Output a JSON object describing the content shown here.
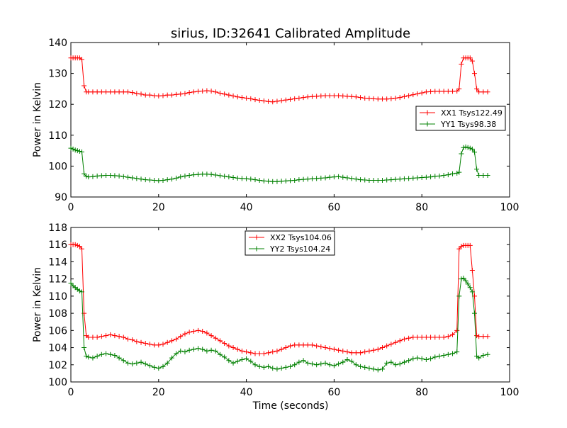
{
  "figure": {
    "title": "sirius, ID:32641 Calibrated Amplitude",
    "xlabel": "Time (seconds)"
  },
  "chart_data": [
    {
      "type": "line",
      "title": "sirius, ID:32641 Calibrated Amplitude",
      "xlabel": "",
      "ylabel": "Power in Kelvin",
      "xlim": [
        0,
        100
      ],
      "ylim": [
        90,
        140
      ],
      "xticks": [
        "0",
        "20",
        "40",
        "60",
        "80",
        "100"
      ],
      "yticks": [
        "90",
        "100",
        "110",
        "120",
        "130",
        "140"
      ],
      "legend_position": "center-right",
      "marker": "plus",
      "series": [
        {
          "name": "XX1 Tsys122.49",
          "color": "#ff0000",
          "x": [
            0,
            0.5,
            1,
            1.5,
            2,
            2.5,
            3,
            3.5,
            4,
            5,
            6,
            7,
            8,
            9,
            10,
            11,
            12,
            13,
            14,
            15,
            16,
            17,
            18,
            19,
            20,
            21,
            22,
            23,
            24,
            25,
            26,
            27,
            28,
            29,
            30,
            31,
            32,
            33,
            34,
            35,
            36,
            37,
            38,
            39,
            40,
            41,
            42,
            43,
            44,
            45,
            46,
            47,
            48,
            49,
            50,
            51,
            52,
            53,
            54,
            55,
            56,
            57,
            58,
            59,
            60,
            61,
            62,
            63,
            64,
            65,
            66,
            67,
            68,
            69,
            70,
            71,
            72,
            73,
            74,
            75,
            76,
            77,
            78,
            79,
            80,
            81,
            82,
            83,
            84,
            85,
            86,
            87,
            88,
            88.5,
            89,
            89.5,
            90,
            90.5,
            91,
            91.5,
            92,
            92.5,
            93,
            94,
            95
          ],
          "y": [
            135,
            135,
            135,
            135,
            135,
            134.5,
            126,
            124,
            124,
            124,
            124,
            124,
            124,
            124,
            124,
            124,
            124,
            124,
            123.8,
            123.5,
            123.3,
            123,
            123,
            122.8,
            122.7,
            122.8,
            123,
            123,
            123.2,
            123.3,
            123.5,
            123.8,
            124,
            124.2,
            124.3,
            124.4,
            124.3,
            124,
            123.6,
            123.3,
            123,
            122.7,
            122.4,
            122.2,
            122,
            121.8,
            121.5,
            121.3,
            121.1,
            120.9,
            120.8,
            121,
            121.2,
            121.4,
            121.6,
            121.8,
            122,
            122.2,
            122.4,
            122.5,
            122.6,
            122.7,
            122.8,
            122.8,
            122.8,
            122.8,
            122.7,
            122.6,
            122.5,
            122.4,
            122.2,
            122,
            121.9,
            121.8,
            121.7,
            121.7,
            121.7,
            121.8,
            122,
            122.2,
            122.5,
            122.8,
            123.1,
            123.4,
            123.7,
            124,
            124.1,
            124.2,
            124.2,
            124.2,
            124.2,
            124.2,
            124.3,
            125,
            133,
            135,
            135,
            135,
            135,
            134,
            130,
            125,
            124,
            124,
            124
          ]
        },
        {
          "name": "YY1 Tsys98.38",
          "color": "#008000",
          "x": [
            0,
            0.5,
            1,
            1.5,
            2,
            2.5,
            3,
            3.5,
            4,
            5,
            6,
            7,
            8,
            9,
            10,
            11,
            12,
            13,
            14,
            15,
            16,
            17,
            18,
            19,
            20,
            21,
            22,
            23,
            24,
            25,
            26,
            27,
            28,
            29,
            30,
            31,
            32,
            33,
            34,
            35,
            36,
            37,
            38,
            39,
            40,
            41,
            42,
            43,
            44,
            45,
            46,
            47,
            48,
            49,
            50,
            51,
            52,
            53,
            54,
            55,
            56,
            57,
            58,
            59,
            60,
            61,
            62,
            63,
            64,
            65,
            66,
            67,
            68,
            69,
            70,
            71,
            72,
            73,
            74,
            75,
            76,
            77,
            78,
            79,
            80,
            81,
            82,
            83,
            84,
            85,
            86,
            87,
            88,
            88.5,
            89,
            89.5,
            90,
            90.5,
            91,
            91.5,
            92,
            92.5,
            93,
            94,
            95
          ],
          "y": [
            105.8,
            105.5,
            105.2,
            105,
            104.8,
            104.6,
            97.5,
            96.7,
            96.5,
            96.6,
            96.8,
            96.9,
            97,
            97,
            96.9,
            96.8,
            96.6,
            96.4,
            96.2,
            96,
            95.8,
            95.6,
            95.5,
            95.4,
            95.3,
            95.4,
            95.6,
            95.8,
            96.1,
            96.5,
            96.8,
            97,
            97.2,
            97.3,
            97.4,
            97.4,
            97.3,
            97.1,
            96.9,
            96.7,
            96.5,
            96.3,
            96.1,
            96,
            95.9,
            95.8,
            95.6,
            95.4,
            95.2,
            95.1,
            95,
            95,
            95.1,
            95.2,
            95.3,
            95.4,
            95.6,
            95.7,
            95.8,
            95.9,
            96,
            96.1,
            96.2,
            96.4,
            96.5,
            96.6,
            96.4,
            96.2,
            96,
            95.8,
            95.6,
            95.5,
            95.4,
            95.4,
            95.4,
            95.4,
            95.5,
            95.6,
            95.7,
            95.8,
            95.9,
            96,
            96.1,
            96.2,
            96.3,
            96.4,
            96.5,
            96.7,
            96.8,
            97,
            97.2,
            97.5,
            97.7,
            98,
            104,
            106,
            106.2,
            106,
            105.8,
            105.5,
            104.5,
            99,
            97,
            97,
            97
          ]
        }
      ]
    },
    {
      "type": "line",
      "title": "",
      "xlabel": "Time (seconds)",
      "ylabel": "Power in Kelvin",
      "xlim": [
        0,
        100
      ],
      "ylim": [
        100,
        118
      ],
      "xticks": [
        "0",
        "20",
        "40",
        "60",
        "80",
        "100"
      ],
      "yticks": [
        "100",
        "102",
        "104",
        "106",
        "108",
        "110",
        "112",
        "114",
        "116",
        "118"
      ],
      "legend_position": "top-center",
      "marker": "plus",
      "series": [
        {
          "name": "XX2 Tsys104.06",
          "color": "#ff0000",
          "x": [
            0,
            0.5,
            1,
            1.5,
            2,
            2.5,
            3,
            3.5,
            4,
            5,
            6,
            7,
            8,
            9,
            10,
            11,
            12,
            13,
            14,
            15,
            16,
            17,
            18,
            19,
            20,
            21,
            22,
            23,
            24,
            25,
            26,
            27,
            28,
            29,
            30,
            31,
            32,
            33,
            34,
            35,
            36,
            37,
            38,
            39,
            40,
            41,
            42,
            43,
            44,
            45,
            46,
            47,
            48,
            49,
            50,
            51,
            52,
            53,
            54,
            55,
            56,
            57,
            58,
            59,
            60,
            61,
            62,
            63,
            64,
            65,
            66,
            67,
            68,
            69,
            70,
            71,
            72,
            73,
            74,
            75,
            76,
            77,
            78,
            79,
            80,
            81,
            82,
            83,
            84,
            85,
            86,
            87,
            88,
            88.5,
            89,
            89.5,
            90,
            90.5,
            91,
            91.5,
            92,
            92.5,
            93,
            94,
            95
          ],
          "y": [
            116,
            116,
            116,
            115.9,
            115.8,
            115.5,
            108,
            105.4,
            105.2,
            105.2,
            105.2,
            105.3,
            105.4,
            105.5,
            105.4,
            105.3,
            105.2,
            105,
            104.9,
            104.7,
            104.6,
            104.5,
            104.4,
            104.3,
            104.3,
            104.4,
            104.6,
            104.8,
            105,
            105.3,
            105.6,
            105.8,
            105.9,
            106,
            105.9,
            105.7,
            105.4,
            105.1,
            104.8,
            104.5,
            104.2,
            104,
            103.8,
            103.6,
            103.5,
            103.4,
            103.3,
            103.3,
            103.3,
            103.4,
            103.5,
            103.6,
            103.8,
            104,
            104.2,
            104.3,
            104.3,
            104.3,
            104.3,
            104.3,
            104.2,
            104.1,
            104,
            103.9,
            103.8,
            103.7,
            103.6,
            103.5,
            103.4,
            103.4,
            103.4,
            103.5,
            103.6,
            103.7,
            103.8,
            104,
            104.2,
            104.4,
            104.6,
            104.8,
            105,
            105.1,
            105.2,
            105.2,
            105.2,
            105.2,
            105.2,
            105.2,
            105.2,
            105.2,
            105.3,
            105.5,
            106,
            115.5,
            115.8,
            115.9,
            115.9,
            115.9,
            115.9,
            113,
            110,
            105.4,
            105.3,
            105.3,
            105.3
          ]
        },
        {
          "name": "YY2 Tsys104.24",
          "color": "#008000",
          "x": [
            0,
            0.5,
            1,
            1.5,
            2,
            2.5,
            3,
            3.5,
            4,
            5,
            6,
            7,
            8,
            9,
            10,
            11,
            12,
            13,
            14,
            15,
            16,
            17,
            18,
            19,
            20,
            21,
            22,
            23,
            24,
            25,
            26,
            27,
            28,
            29,
            30,
            31,
            32,
            33,
            34,
            35,
            36,
            37,
            38,
            39,
            40,
            41,
            42,
            43,
            44,
            45,
            46,
            47,
            48,
            49,
            50,
            51,
            52,
            53,
            54,
            55,
            56,
            57,
            58,
            59,
            60,
            61,
            62,
            63,
            64,
            65,
            66,
            67,
            68,
            69,
            70,
            71,
            72,
            73,
            74,
            75,
            76,
            77,
            78,
            79,
            80,
            81,
            82,
            83,
            84,
            85,
            86,
            87,
            88,
            88.5,
            89,
            89.5,
            90,
            90.5,
            91,
            91.5,
            92,
            92.5,
            93,
            94,
            95
          ],
          "y": [
            111.5,
            111.2,
            111,
            110.8,
            110.6,
            110.5,
            104,
            103,
            102.9,
            102.8,
            103,
            103.2,
            103.3,
            103.2,
            103.1,
            102.8,
            102.5,
            102.2,
            102.1,
            102.2,
            102.3,
            102.1,
            101.9,
            101.7,
            101.6,
            101.8,
            102.2,
            102.8,
            103.3,
            103.6,
            103.5,
            103.7,
            103.8,
            103.9,
            103.8,
            103.6,
            103.7,
            103.6,
            103.2,
            102.9,
            102.5,
            102.2,
            102.4,
            102.6,
            102.7,
            102.4,
            102,
            101.8,
            101.7,
            101.8,
            101.6,
            101.5,
            101.6,
            101.7,
            101.8,
            102,
            102.3,
            102.5,
            102.2,
            102.1,
            102,
            102.1,
            102.2,
            102,
            101.9,
            102.1,
            102.3,
            102.6,
            102.4,
            102,
            101.8,
            101.7,
            101.6,
            101.5,
            101.4,
            101.5,
            102.2,
            102.3,
            102,
            102.1,
            102.3,
            102.5,
            102.7,
            102.8,
            102.7,
            102.6,
            102.7,
            102.9,
            103,
            103.1,
            103.2,
            103.3,
            103.5,
            110,
            112,
            112.1,
            111.8,
            111.4,
            111,
            110.5,
            108,
            103,
            102.8,
            103.1,
            103.2
          ]
        }
      ]
    }
  ]
}
